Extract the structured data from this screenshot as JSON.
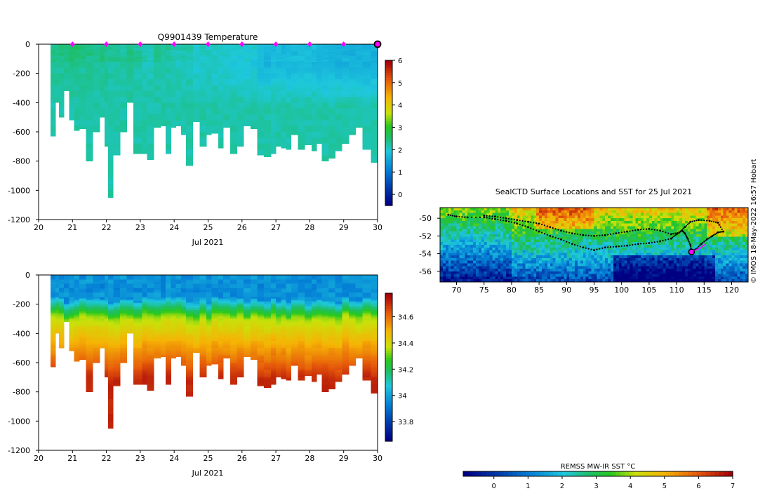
{
  "credit": "© IMOS 18-May-2022 16:57 Hobart",
  "colors": {
    "background": "#ffffff",
    "seal_path": "#000000",
    "marker": "#ff00ff"
  },
  "chart_data": [
    {
      "id": "temperature",
      "type": "heatmap",
      "title": "Q9901439  Temperature",
      "xlabel": "Jul 2021",
      "ylabel": "",
      "xlim": [
        20,
        30
      ],
      "ylim": [
        -1200,
        0
      ],
      "xticks": [
        "20",
        "21",
        "22",
        "23",
        "24",
        "25",
        "26",
        "27",
        "28",
        "29",
        "30"
      ],
      "yticks": [
        "0",
        "-200",
        "-400",
        "-600",
        "-800",
        "-1000",
        "-1200"
      ],
      "colorbar": {
        "range": [
          -0.5,
          6
        ],
        "ticks": [
          "0",
          "1",
          "2",
          "3",
          "4",
          "5",
          "6"
        ],
        "colormap": "jet"
      },
      "profile_times": [
        20.35,
        20.5,
        20.6,
        20.75,
        20.9,
        21.05,
        21.2,
        21.4,
        21.6,
        21.8,
        21.95,
        22.05,
        22.2,
        22.4,
        22.6,
        22.8,
        23.05,
        23.2,
        23.4,
        23.6,
        23.75,
        23.9,
        24.05,
        24.2,
        24.35,
        24.55,
        24.75,
        24.95,
        25.1,
        25.3,
        25.45,
        25.65,
        25.85,
        26.05,
        26.25,
        26.45,
        26.65,
        26.85,
        27.0,
        27.15,
        27.3,
        27.45,
        27.65,
        27.85,
        28.05,
        28.2,
        28.35,
        28.55,
        28.75,
        28.95,
        29.15,
        29.35,
        29.55,
        29.8,
        30.0
      ],
      "profile_max_depth_m": [
        630,
        400,
        500,
        320,
        520,
        590,
        580,
        800,
        600,
        500,
        700,
        1050,
        760,
        600,
        400,
        750,
        750,
        790,
        570,
        560,
        750,
        570,
        560,
        620,
        830,
        530,
        700,
        620,
        610,
        710,
        570,
        750,
        700,
        560,
        580,
        760,
        770,
        750,
        700,
        710,
        720,
        620,
        720,
        690,
        730,
        680,
        800,
        780,
        730,
        680,
        620,
        570,
        720,
        810,
        500
      ],
      "surface_value_C": [
        2.3,
        2.3,
        2.3,
        2.3,
        2.4,
        2.4,
        2.3,
        2.3,
        2.3,
        2.3,
        2.3,
        2.2,
        2.2,
        2.2,
        2.3,
        2.2,
        2.1,
        2.1,
        2.2,
        2.2,
        2.2,
        2.1,
        2.1,
        2.1,
        2.1,
        2.0,
        2.0,
        2.0,
        2.0,
        2.0,
        2.0,
        1.9,
        1.9,
        1.9,
        1.9,
        1.7,
        1.7,
        1.7,
        1.7,
        1.7,
        1.7,
        1.7,
        1.7,
        1.7,
        1.7,
        1.6,
        1.6,
        1.6,
        1.6,
        1.6,
        1.6,
        1.6,
        1.6,
        1.6,
        1.6
      ],
      "deep_value_C": 2.2,
      "surface_markers_day": [
        21,
        22,
        23,
        24,
        25,
        26,
        27,
        28,
        29,
        30
      ]
    },
    {
      "id": "salinity",
      "type": "heatmap",
      "title": "",
      "xlabel": "Jul 2021",
      "ylabel": "",
      "xlim": [
        20,
        30
      ],
      "ylim": [
        -1200,
        0
      ],
      "xticks": [
        "20",
        "21",
        "22",
        "23",
        "24",
        "25",
        "26",
        "27",
        "28",
        "29",
        "30"
      ],
      "yticks": [
        "0",
        "-200",
        "-400",
        "-600",
        "-800",
        "-1000",
        "-1200"
      ],
      "colorbar": {
        "range": [
          33.65,
          34.78
        ],
        "ticks": [
          "33.8",
          "34",
          "34.2",
          "34.4",
          "34.6"
        ],
        "colormap": "jet"
      },
      "surface_value_psu": 33.92,
      "halocline_depth_m": 230,
      "deep_value_psu": 34.72
    },
    {
      "id": "sst_map",
      "type": "heatmap",
      "title": "SealCTD Surface Locations and SST for 25 Jul 2021",
      "xlabel": "",
      "ylabel": "",
      "xlim": [
        67,
        123
      ],
      "ylim": [
        -57.2,
        -48.8
      ],
      "xticks": [
        "70",
        "75",
        "80",
        "85",
        "90",
        "95",
        "100",
        "105",
        "110",
        "115",
        "120"
      ],
      "yticks": [
        "-50",
        "-52",
        "-54",
        "-56"
      ],
      "colorbar": {
        "label": "REMSS MW-IR SST °C",
        "range": [
          -0.9,
          7
        ],
        "ticks": [
          "0",
          "1",
          "2",
          "3",
          "4",
          "5",
          "6",
          "7"
        ],
        "colormap": "jet"
      },
      "track_lon_lat": [
        [
          68.5,
          -49.6
        ],
        [
          70,
          -49.8
        ],
        [
          72,
          -49.9
        ],
        [
          75,
          -49.9
        ],
        [
          77,
          -50.1
        ],
        [
          79,
          -50.3
        ],
        [
          81,
          -50.6
        ],
        [
          83,
          -51.0
        ],
        [
          85,
          -51.5
        ],
        [
          87,
          -52.0
        ],
        [
          89,
          -52.4
        ],
        [
          91,
          -52.9
        ],
        [
          93,
          -53.3
        ],
        [
          95,
          -53.6
        ],
        [
          97,
          -53.3
        ],
        [
          99,
          -53.2
        ],
        [
          101,
          -53.1
        ],
        [
          103,
          -52.9
        ],
        [
          105,
          -52.8
        ],
        [
          107,
          -52.6
        ],
        [
          109,
          -52.3
        ],
        [
          110,
          -51.8
        ],
        [
          111,
          -51.4
        ],
        [
          111.5,
          -51.7
        ],
        [
          112,
          -52.3
        ],
        [
          112.5,
          -53.0
        ],
        [
          112.7,
          -53.8
        ],
        [
          113.5,
          -53.5
        ],
        [
          114.5,
          -52.9
        ],
        [
          115.5,
          -52.4
        ],
        [
          116.5,
          -52.0
        ],
        [
          117.5,
          -51.6
        ],
        [
          118.5,
          -51.5
        ],
        [
          117.5,
          -50.5
        ],
        [
          116,
          -50.3
        ],
        [
          114,
          -50.2
        ],
        [
          112.5,
          -50.4
        ],
        [
          111.5,
          -51.0
        ],
        [
          110.5,
          -51.6
        ],
        [
          109,
          -51.8
        ],
        [
          107,
          -51.4
        ],
        [
          105,
          -51.2
        ],
        [
          103,
          -51.3
        ],
        [
          101,
          -51.5
        ],
        [
          99,
          -51.7
        ],
        [
          97,
          -51.9
        ],
        [
          95,
          -52.0
        ],
        [
          93,
          -51.9
        ],
        [
          91,
          -51.7
        ],
        [
          89,
          -51.4
        ],
        [
          87,
          -51.0
        ],
        [
          85,
          -50.6
        ],
        [
          83,
          -50.4
        ],
        [
          81,
          -50.2
        ],
        [
          79,
          -50.0
        ],
        [
          77,
          -49.8
        ],
        [
          75,
          -49.7
        ]
      ],
      "current_position_lon_lat": [
        112.7,
        -53.8
      ]
    }
  ]
}
